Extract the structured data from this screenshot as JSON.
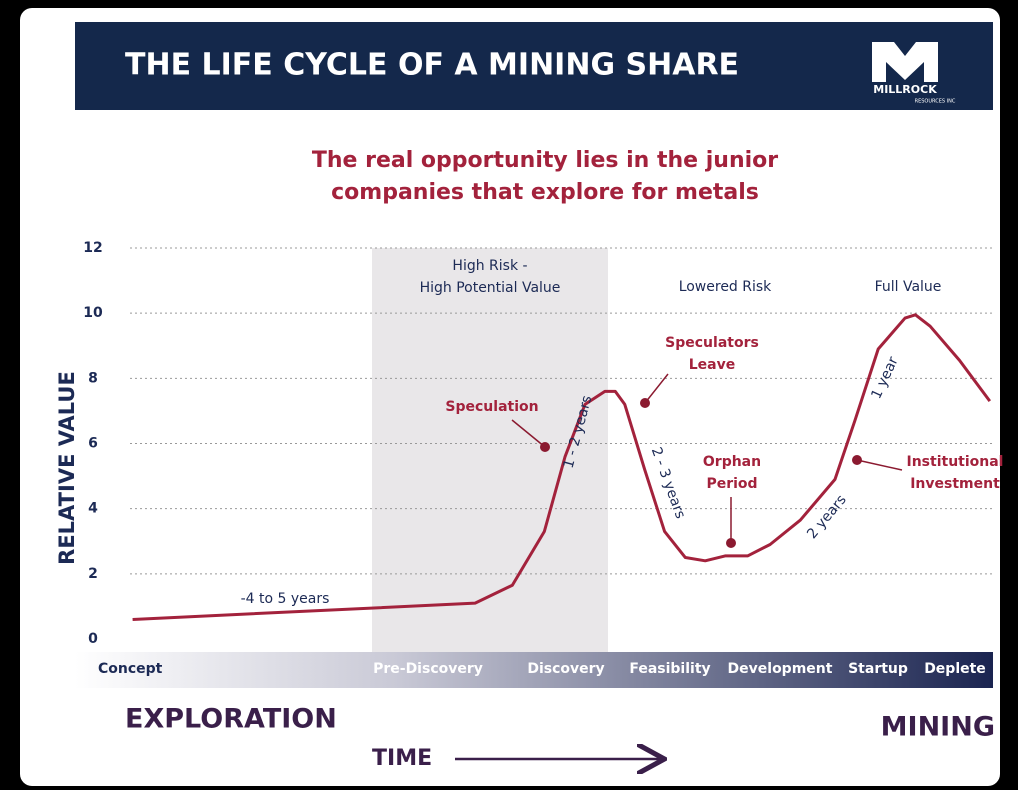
{
  "header": {
    "title": "THE LIFE CYCLE OF A MINING SHARE",
    "logo": {
      "name": "MILLROCK",
      "sub": "RESOURCES INC"
    }
  },
  "chart_data": {
    "type": "line",
    "title": [
      "The real opportunity lies in the junior",
      "companies that explore for metals"
    ],
    "y_label": "RELATIVE VALUE",
    "ylim": [
      0,
      12
    ],
    "yticks": [
      0,
      2,
      4,
      6,
      8,
      10,
      12
    ],
    "xlim": [
      0,
      100
    ],
    "grid": true,
    "x": [
      0.3,
      39.9,
      44.2,
      47.9,
      50.3,
      52.6,
      54.9,
      56.1,
      57.2,
      59.5,
      61.8,
      64.2,
      66.5,
      68.8,
      71.4,
      74.0,
      77.5,
      81.5,
      83.8,
      86.5,
      89.6,
      90.8,
      92.5,
      95.9,
      99.4
    ],
    "series": [
      {
        "color": "#a3223c",
        "values": [
          0.6,
          1.1,
          1.65,
          3.3,
          5.6,
          7.2,
          7.6,
          7.6,
          7.2,
          5.2,
          3.3,
          2.5,
          2.4,
          2.55,
          2.55,
          2.9,
          3.65,
          4.9,
          6.7,
          8.9,
          9.85,
          9.95,
          9.6,
          8.55,
          7.3
        ]
      }
    ],
    "regions": [
      [
        "High Risk -",
        "High Potential Value"
      ],
      [
        "Lowered Risk"
      ],
      [
        "Full Value"
      ]
    ],
    "durations": [
      "-4 to 5 years",
      "1 - 2 years",
      "2 - 3 years",
      "2 years",
      "1 year"
    ],
    "annotations": [
      [
        "Speculation"
      ],
      [
        "Speculators",
        "Leave"
      ],
      [
        "Orphan",
        "Period"
      ],
      [
        "Institutional",
        "Investment"
      ]
    ],
    "stages": [
      "Concept",
      "Pre-Discovery",
      "Discovery",
      "Feasibility",
      "Development",
      "Startup",
      "Deplete"
    ],
    "phases": {
      "start": "EXPLORATION",
      "end": "MINING",
      "axis": "TIME"
    }
  }
}
